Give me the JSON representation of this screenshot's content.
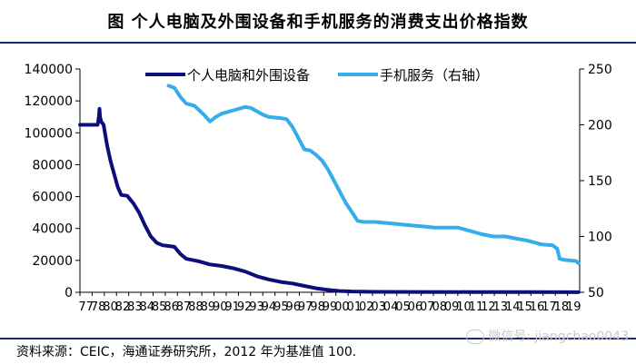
{
  "figure": {
    "title": "图    个人电脑及外围设备和手机服务的消费支出价格指数",
    "source": "资料来源：CEIC，海通证券研究所，2012 年为基准值 100.",
    "watermark": "微信号: jiangchao0043"
  },
  "chart_data": {
    "type": "line",
    "title": "个人电脑及外围设备和手机服务的消费支出价格指数",
    "x_tick_labels": [
      "77",
      "78",
      "80",
      "82",
      "83",
      "84",
      "85",
      "86",
      "87",
      "88",
      "89",
      "90",
      "91",
      "92",
      "93",
      "94",
      "95",
      "96",
      "97",
      "98",
      "99",
      "00",
      "01",
      "02",
      "03",
      "04",
      "05",
      "06",
      "07",
      "08",
      "09",
      "10",
      "11",
      "12",
      "13",
      "14",
      "15",
      "16",
      "17",
      "18",
      "19"
    ],
    "xlim": [
      1977,
      2019.3
    ],
    "y_left": {
      "ylim": [
        0,
        140000
      ],
      "ticks": [
        "0",
        "20000",
        "40000",
        "60000",
        "80000",
        "100000",
        "120000",
        "140000"
      ]
    },
    "y_right": {
      "ylim": [
        50,
        250
      ],
      "ticks": [
        "50",
        "100",
        "150",
        "200",
        "250"
      ],
      "label": "右轴"
    },
    "series": [
      {
        "name": "个人电脑和外围设备",
        "axis": "left",
        "color": "#0d0d7c",
        "points": [
          [
            1977.0,
            105000
          ],
          [
            1978.5,
            105000
          ],
          [
            1978.6,
            110000
          ],
          [
            1978.65,
            115000
          ],
          [
            1978.7,
            110000
          ],
          [
            1978.8,
            107000
          ],
          [
            1979.0,
            105000
          ],
          [
            1979.3,
            92000
          ],
          [
            1979.6,
            82000
          ],
          [
            1979.9,
            74000
          ],
          [
            1980.2,
            66000
          ],
          [
            1980.5,
            61000
          ],
          [
            1981.0,
            60500
          ],
          [
            1981.5,
            56000
          ],
          [
            1982.0,
            50000
          ],
          [
            1982.5,
            42000
          ],
          [
            1983.0,
            35000
          ],
          [
            1983.5,
            31000
          ],
          [
            1984.0,
            29500
          ],
          [
            1984.5,
            29000
          ],
          [
            1985.0,
            28500
          ],
          [
            1985.5,
            24000
          ],
          [
            1986.0,
            21000
          ],
          [
            1987.0,
            19500
          ],
          [
            1988.0,
            17500
          ],
          [
            1989.0,
            16500
          ],
          [
            1990.0,
            15000
          ],
          [
            1991.0,
            13000
          ],
          [
            1992.0,
            10000
          ],
          [
            1993.0,
            8000
          ],
          [
            1994.0,
            6500
          ],
          [
            1995.0,
            5500
          ],
          [
            1996.0,
            4000
          ],
          [
            1997.0,
            2500
          ],
          [
            1998.0,
            1500
          ],
          [
            1999.0,
            800
          ],
          [
            2000.0,
            500
          ],
          [
            2002.0,
            300
          ],
          [
            2005.0,
            200
          ],
          [
            2010.0,
            150
          ],
          [
            2015.0,
            100
          ],
          [
            2019.2,
            80
          ]
        ]
      },
      {
        "name": "手机服务（右轴）",
        "axis": "right",
        "color": "#33aee8",
        "points": [
          [
            1984.5,
            235
          ],
          [
            1985.0,
            233
          ],
          [
            1985.5,
            225
          ],
          [
            1986.0,
            219
          ],
          [
            1986.7,
            217
          ],
          [
            1987.0,
            214
          ],
          [
            1987.5,
            209
          ],
          [
            1988.0,
            203
          ],
          [
            1988.5,
            207
          ],
          [
            1989.0,
            210
          ],
          [
            1990.0,
            213
          ],
          [
            1991.0,
            216
          ],
          [
            1991.5,
            215
          ],
          [
            1992.0,
            212
          ],
          [
            1992.5,
            209
          ],
          [
            1993.0,
            207
          ],
          [
            1994.0,
            206
          ],
          [
            1994.5,
            205
          ],
          [
            1995.0,
            198
          ],
          [
            1995.5,
            188
          ],
          [
            1996.0,
            178
          ],
          [
            1996.5,
            177
          ],
          [
            1997.0,
            173
          ],
          [
            1997.5,
            168
          ],
          [
            1998.0,
            160
          ],
          [
            1998.5,
            150
          ],
          [
            1999.0,
            140
          ],
          [
            1999.5,
            130
          ],
          [
            2000.0,
            122
          ],
          [
            2000.5,
            114
          ],
          [
            2001.0,
            113
          ],
          [
            2002.0,
            113
          ],
          [
            2003.0,
            112
          ],
          [
            2004.0,
            111
          ],
          [
            2005.0,
            110
          ],
          [
            2006.0,
            109
          ],
          [
            2007.0,
            108
          ],
          [
            2008.0,
            108
          ],
          [
            2009.0,
            108
          ],
          [
            2010.0,
            105
          ],
          [
            2011.0,
            102
          ],
          [
            2012.0,
            100
          ],
          [
            2013.0,
            100
          ],
          [
            2014.0,
            98
          ],
          [
            2015.0,
            96
          ],
          [
            2016.0,
            93
          ],
          [
            2017.0,
            92
          ],
          [
            2017.4,
            89
          ],
          [
            2017.6,
            80
          ],
          [
            2018.0,
            79
          ],
          [
            2019.0,
            78
          ],
          [
            2019.2,
            76
          ]
        ]
      }
    ],
    "legend": {
      "placement": "top-center"
    }
  }
}
